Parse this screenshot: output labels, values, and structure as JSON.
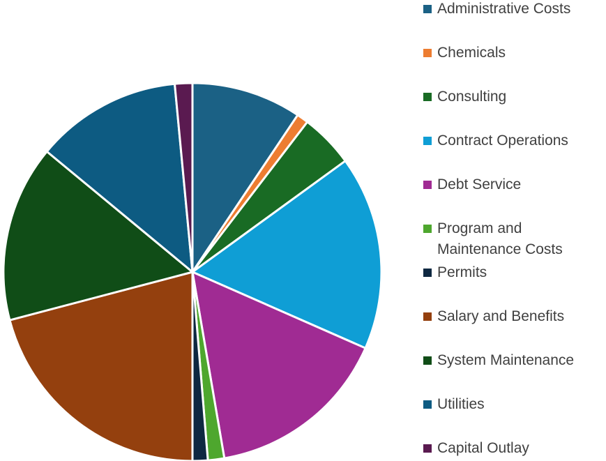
{
  "chart_data": {
    "type": "pie",
    "categories": [
      "Administrative Costs",
      "Chemicals",
      "Consulting",
      "Contract Operations",
      "Debt Service",
      "Program and Maintenance Costs",
      "Permits",
      "Salary and Benefits",
      "System Maintenance",
      "Utilities",
      "Capital Outlay"
    ],
    "values": [
      9.4,
      1.0,
      4.6,
      16.6,
      15.7,
      1.4,
      1.3,
      20.9,
      15.1,
      12.5,
      1.5
    ],
    "colors": [
      "#1b6185",
      "#ed7d31",
      "#196b24",
      "#0f9ed5",
      "#a02b93",
      "#4ea72e",
      "#0e2841",
      "#94400e",
      "#104d17",
      "#0d5b82",
      "#5a1a50"
    ],
    "legend": "right"
  }
}
